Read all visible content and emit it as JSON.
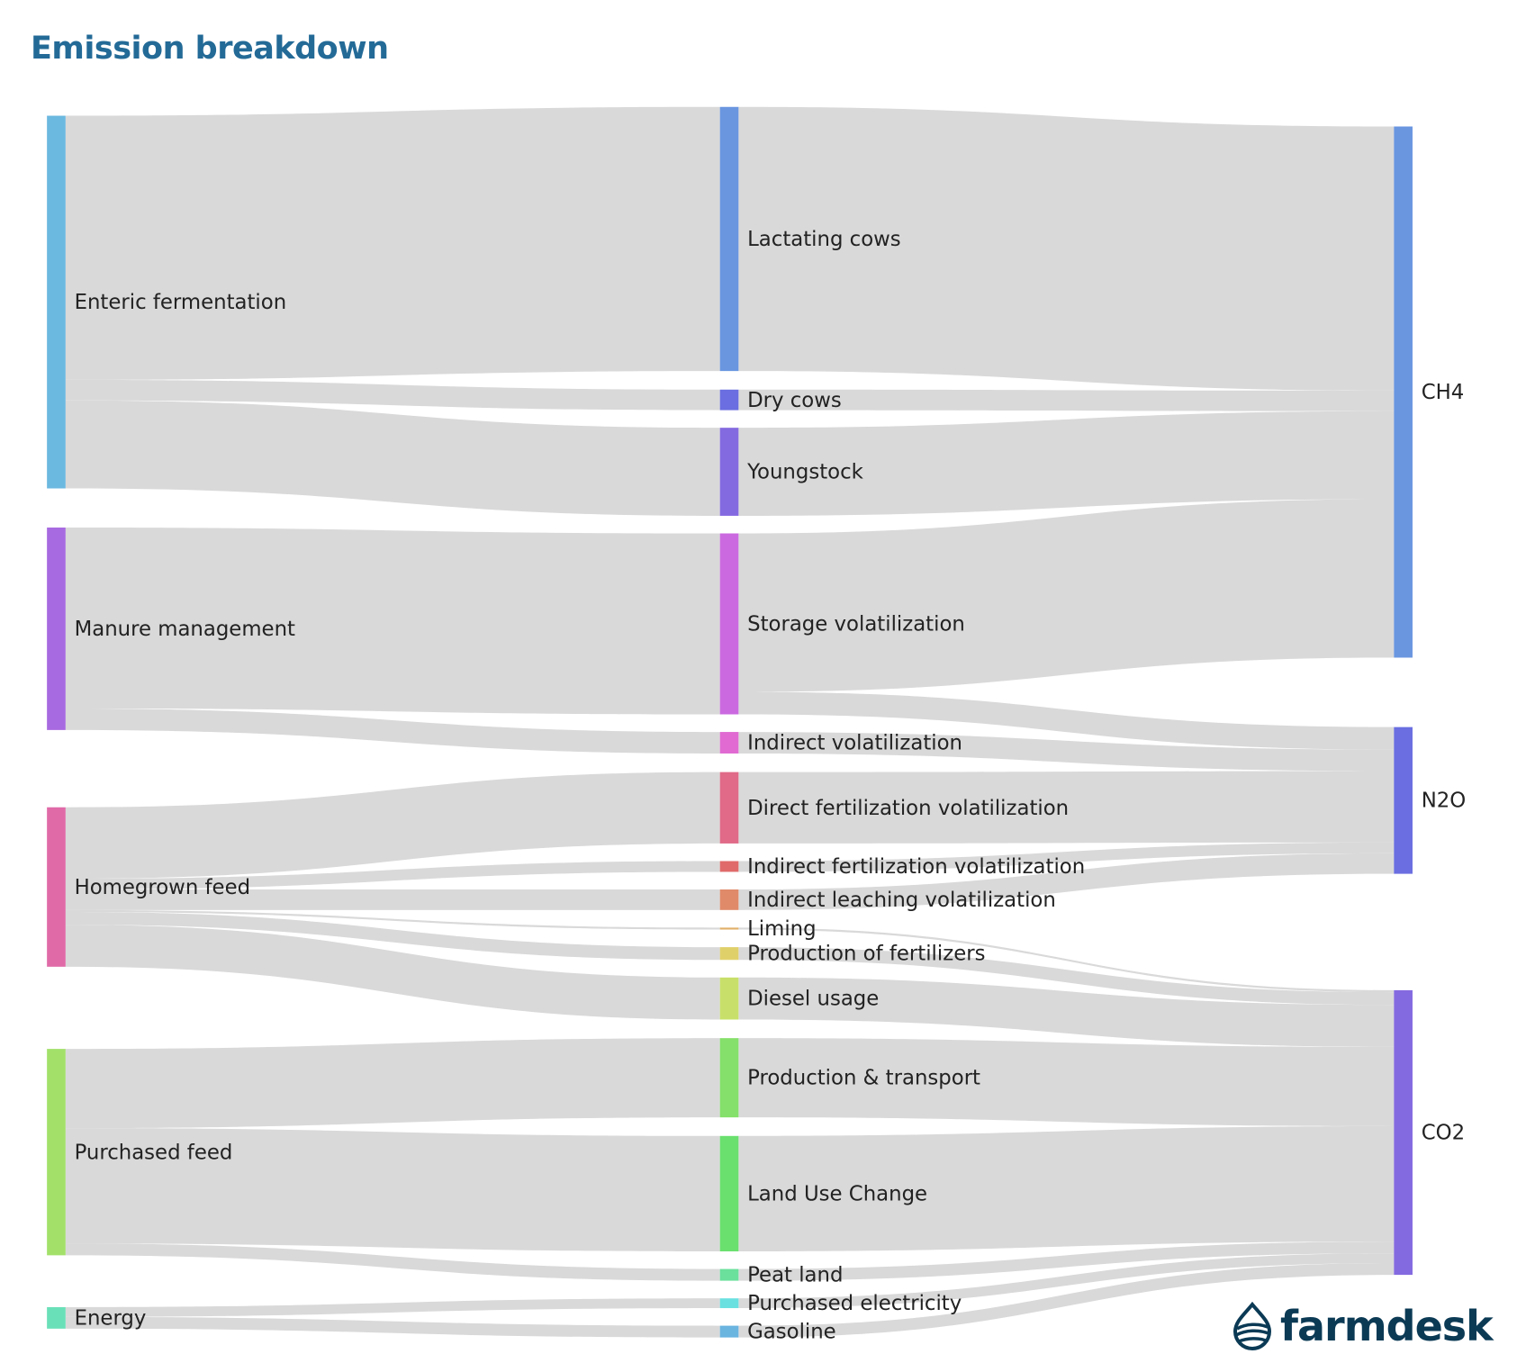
{
  "title": "Emission breakdown",
  "brand": {
    "name": "farmdesk",
    "color": "#0b3a55"
  },
  "chart_data": {
    "type": "sankey",
    "title": "Emission breakdown",
    "link_color": "#d9d9d9",
    "nodes": [
      {
        "name": "Enteric fermentation",
        "color": "#6bb8e0"
      },
      {
        "name": "Manure management",
        "color": "#a86ae0"
      },
      {
        "name": "Homegrown feed",
        "color": "#e06aa8"
      },
      {
        "name": "Purchased feed",
        "color": "#a2e06a"
      },
      {
        "name": "Energy",
        "color": "#6ae0b8"
      },
      {
        "name": "Lactating cows",
        "color": "#6a96e0"
      },
      {
        "name": "Dry cows",
        "color": "#6a6ee0"
      },
      {
        "name": "Youngstock",
        "color": "#846ae0"
      },
      {
        "name": "Storage volatilization",
        "color": "#cb6ae0"
      },
      {
        "name": "Indirect volatilization",
        "color": "#e06ad2"
      },
      {
        "name": "Direct fertilization volatilization",
        "color": "#e06a88"
      },
      {
        "name": "Indirect fertilization volatilization",
        "color": "#e06a6a"
      },
      {
        "name": "Indirect leaching volatilization",
        "color": "#e08a6a"
      },
      {
        "name": "Liming",
        "color": "#e0b06a"
      },
      {
        "name": "Production of fertilizers",
        "color": "#e0d06a"
      },
      {
        "name": "Diesel usage",
        "color": "#c8e06a"
      },
      {
        "name": "Production & transport",
        "color": "#84e06a"
      },
      {
        "name": "Land Use Change",
        "color": "#6ae06e"
      },
      {
        "name": "Peat land",
        "color": "#6ae09c"
      },
      {
        "name": "Purchased electricity",
        "color": "#6ae0e0"
      },
      {
        "name": "Gasoline",
        "color": "#6ab4e0"
      },
      {
        "name": "CH4",
        "color": "#6a96e0"
      },
      {
        "name": "N2O",
        "color": "#6a6ee0"
      },
      {
        "name": "CO2",
        "color": "#846ae0"
      }
    ],
    "links": [
      {
        "source": "Enteric fermentation",
        "target": "Lactating cows",
        "value": 270
      },
      {
        "source": "Enteric fermentation",
        "target": "Dry cows",
        "value": 21
      },
      {
        "source": "Enteric fermentation",
        "target": "Youngstock",
        "value": 90
      },
      {
        "source": "Manure management",
        "target": "Storage volatilization",
        "value": 185
      },
      {
        "source": "Manure management",
        "target": "Indirect volatilization",
        "value": 22
      },
      {
        "source": "Homegrown feed",
        "target": "Direct fertilization volatilization",
        "value": 73
      },
      {
        "source": "Homegrown feed",
        "target": "Indirect fertilization volatilization",
        "value": 11
      },
      {
        "source": "Homegrown feed",
        "target": "Indirect leaching volatilization",
        "value": 21
      },
      {
        "source": "Homegrown feed",
        "target": "Liming",
        "value": 2
      },
      {
        "source": "Homegrown feed",
        "target": "Production of fertilizers",
        "value": 13
      },
      {
        "source": "Homegrown feed",
        "target": "Diesel usage",
        "value": 43
      },
      {
        "source": "Purchased feed",
        "target": "Production & transport",
        "value": 81
      },
      {
        "source": "Purchased feed",
        "target": "Land Use Change",
        "value": 118
      },
      {
        "source": "Purchased feed",
        "target": "Peat land",
        "value": 12
      },
      {
        "source": "Energy",
        "target": "Purchased electricity",
        "value": 10
      },
      {
        "source": "Energy",
        "target": "Gasoline",
        "value": 12
      },
      {
        "source": "Lactating cows",
        "target": "CH4",
        "value": 270
      },
      {
        "source": "Dry cows",
        "target": "CH4",
        "value": 21
      },
      {
        "source": "Youngstock",
        "target": "CH4",
        "value": 90
      },
      {
        "source": "Storage volatilization",
        "target": "CH4",
        "value": 162
      },
      {
        "source": "Storage volatilization",
        "target": "N2O",
        "value": 23
      },
      {
        "source": "Indirect volatilization",
        "target": "N2O",
        "value": 22
      },
      {
        "source": "Direct fertilization volatilization",
        "target": "N2O",
        "value": 73
      },
      {
        "source": "Indirect fertilization volatilization",
        "target": "N2O",
        "value": 11
      },
      {
        "source": "Indirect leaching volatilization",
        "target": "N2O",
        "value": 21
      },
      {
        "source": "Liming",
        "target": "CO2",
        "value": 2
      },
      {
        "source": "Production of fertilizers",
        "target": "CO2",
        "value": 13
      },
      {
        "source": "Diesel usage",
        "target": "CO2",
        "value": 43
      },
      {
        "source": "Production & transport",
        "target": "CO2",
        "value": 81
      },
      {
        "source": "Land Use Change",
        "target": "CO2",
        "value": 118
      },
      {
        "source": "Peat land",
        "target": "CO2",
        "value": 12
      },
      {
        "source": "Purchased electricity",
        "target": "CO2",
        "value": 10
      },
      {
        "source": "Gasoline",
        "target": "CO2",
        "value": 12
      }
    ]
  }
}
